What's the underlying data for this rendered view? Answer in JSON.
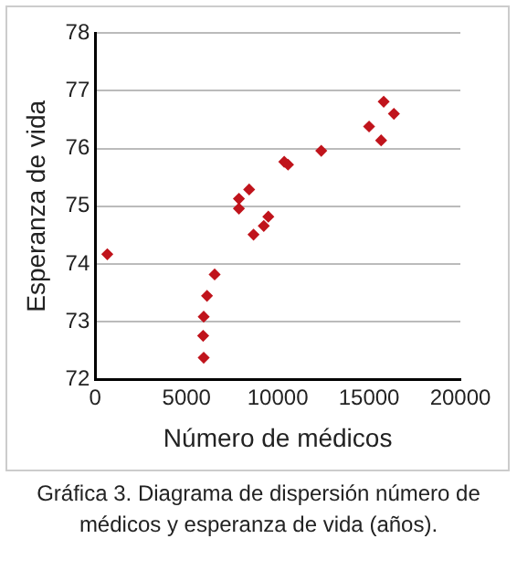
{
  "chart_data": {
    "type": "scatter",
    "xlabel": "Número de médicos",
    "ylabel": "Esperanza de vida",
    "x": [
      660,
      5940,
      5910,
      5940,
      6120,
      6540,
      7870,
      7870,
      8430,
      8670,
      9230,
      9480,
      10350,
      10560,
      12380,
      15000,
      15660,
      15800,
      16360
    ],
    "series": [
      {
        "color": "#c0141c",
        "values": [
          74.17,
          72.38,
          72.76,
          73.09,
          73.45,
          73.82,
          75.13,
          74.96,
          75.29,
          74.51,
          74.66,
          74.82,
          75.77,
          75.72,
          75.96,
          76.38,
          76.14,
          76.81,
          76.6
        ]
      }
    ],
    "xlim": [
      0,
      20000
    ],
    "xticks": [
      0,
      5000,
      10000,
      15000,
      20000
    ],
    "ylim": [
      72,
      78
    ],
    "yticks": [
      72,
      73,
      74,
      75,
      76,
      77,
      78
    ],
    "grid": "y",
    "legend": false,
    "marker": "diamond",
    "annotations": [
      "Gráfica 3. Diagrama de dispersión número de médicos y esperanza de vida (años)."
    ]
  }
}
